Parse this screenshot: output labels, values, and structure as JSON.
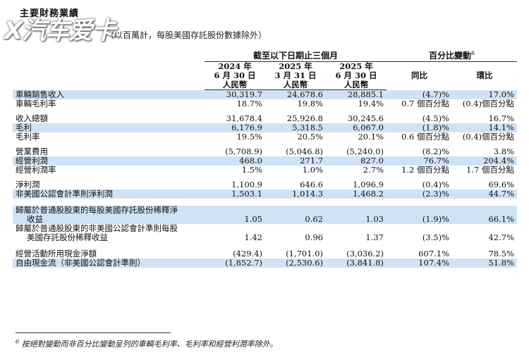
{
  "title": "主要財務業績",
  "subtitle": "（以百萬計，每股美國存託股份數據除外）",
  "logo_text": "X汽车爱卡",
  "table": {
    "period_header": "截至以下日期止三個月",
    "change_header": "百分比變動",
    "change_note": "6",
    "columns": [
      {
        "year": "2024 年",
        "date": "6 月 30 日",
        "currency": "人民幣"
      },
      {
        "year": "2025 年",
        "date": "3 月 31 日",
        "currency": "人民幣"
      },
      {
        "year": "2025 年",
        "date": "6 月 30 日",
        "currency": "人民幣"
      }
    ],
    "yoy_header": "同比",
    "qoq_header": "環比",
    "rows": [
      {
        "label": "車輛銷售收入",
        "v1": "30,319.7",
        "v2": "24,678.6",
        "v3": "28,885.1",
        "yoy": "(4.7)%",
        "qoq": "17.0%"
      },
      {
        "label": "車輛毛利率",
        "v1": "18.7%",
        "v2": "19.8%",
        "v3": "19.4%",
        "yoy": "0.7 個百分點",
        "qoq": "(0.4)個百分點"
      },
      {
        "label": "收入總額",
        "v1": "31,678.4",
        "v2": "25,926.8",
        "v3": "30,245.6",
        "yoy": "(4.5)%",
        "qoq": "16.7%"
      },
      {
        "label": "毛利",
        "v1": "6,176.9",
        "v2": "5,318.5",
        "v3": "6,067.0",
        "yoy": "(1.8)%",
        "qoq": "14.1%"
      },
      {
        "label": "毛利率",
        "v1": "19.5%",
        "v2": "20.5%",
        "v3": "20.1%",
        "yoy": "0.6 個百分點",
        "qoq": "(0.4)個百分點"
      },
      {
        "label": "營業費用",
        "v1": "(5,708.9)",
        "v2": "(5,046.8)",
        "v3": "(5,240.0)",
        "yoy": "(8.2)%",
        "qoq": "3.8%"
      },
      {
        "label": "經營利潤",
        "v1": "468.0",
        "v2": "271.7",
        "v3": "827.0",
        "yoy": "76.7%",
        "qoq": "204.4%"
      },
      {
        "label": "經營利潤率",
        "v1": "1.5%",
        "v2": "1.0%",
        "v3": "2.7%",
        "yoy": "1.2 個百分點",
        "qoq": "1.7 個百分點"
      },
      {
        "label": "淨利潤",
        "v1": "1,100.9",
        "v2": "646.6",
        "v3": "1,096.9",
        "yoy": "(0.4)%",
        "qoq": "69.6%"
      },
      {
        "label": "非美國公認會計準則淨利潤",
        "v1": "1,503.1",
        "v2": "1,014.3",
        "v3": "1,468.2",
        "yoy": "(2.3)%",
        "qoq": "44.7%"
      },
      {
        "label1": "歸屬於普通股股東的每股美國存託股份稀釋淨",
        "label2": "收益",
        "v1": "1.05",
        "v2": "0.62",
        "v3": "1.03",
        "yoy": "(1.9)%",
        "qoq": "66.1%"
      },
      {
        "label1": "歸屬於普通股股東的非美國公認會計準則每股",
        "label2": "美國存託股份稀釋收益",
        "v1": "1.42",
        "v2": "0.96",
        "v3": "1.37",
        "yoy": "(3.5)%",
        "qoq": "42.7%"
      },
      {
        "label": "經營活動所用現金淨額",
        "v1": "(429.4)",
        "v2": "(1,701.0)",
        "v3": "(3,036.2)",
        "yoy": "607.1%",
        "qoq": "78.5%"
      },
      {
        "label": "自由現金流（非美國公認會計準則）",
        "v1": "(1,852.7)",
        "v2": "(2,530.6)",
        "v3": "(3,841.8)",
        "yoy": "107.4%",
        "qoq": "51.8%"
      }
    ]
  },
  "footnote_mark": "6",
  "footnote": "按絕對變動而非百分比變動呈列的車輛毛利率、毛利率和經營利潤率除外。",
  "colors": {
    "row_highlight": "#cfe3f5",
    "text": "#111111"
  }
}
